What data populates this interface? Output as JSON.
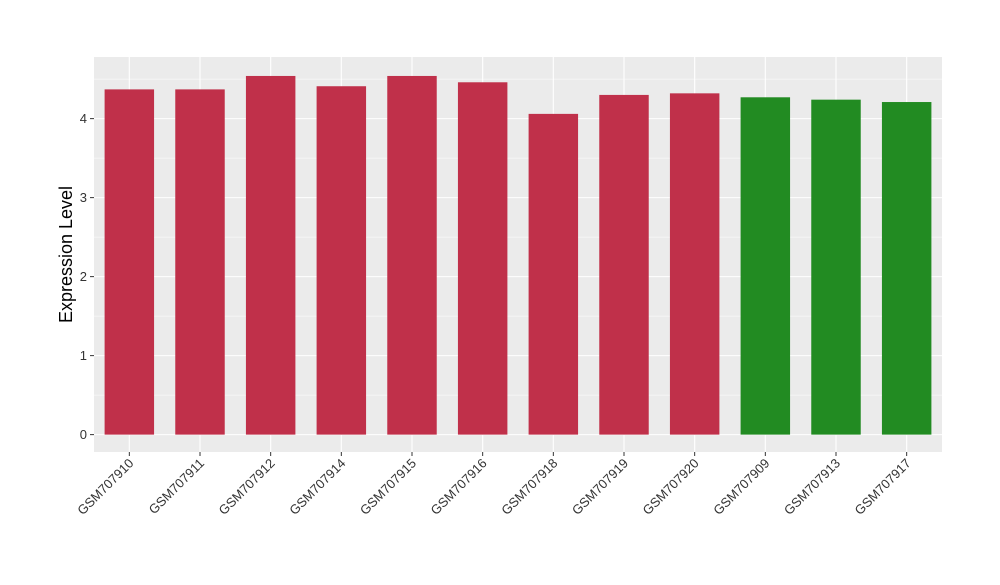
{
  "chart_data": {
    "type": "bar",
    "title": "",
    "xlabel": "",
    "ylabel": "Expression Level",
    "ylim": [
      -0.22,
      4.78
    ],
    "y_ticks": [
      0,
      1,
      2,
      3,
      4
    ],
    "grid": true,
    "legend": "none",
    "categories": [
      "GSM707910",
      "GSM707911",
      "GSM707912",
      "GSM707914",
      "GSM707915",
      "GSM707916",
      "GSM707918",
      "GSM707919",
      "GSM707920",
      "GSM707909",
      "GSM707913",
      "GSM707917"
    ],
    "values": [
      4.37,
      4.37,
      4.54,
      4.41,
      4.54,
      4.46,
      4.06,
      4.3,
      4.32,
      4.27,
      4.24,
      4.21
    ],
    "groups": [
      "group1",
      "group1",
      "group1",
      "group1",
      "group1",
      "group1",
      "group1",
      "group1",
      "group1",
      "group2",
      "group2",
      "group2"
    ],
    "colors": {
      "group1": "#c0304a",
      "group2": "#228b22"
    },
    "panel_background": "#ebebeb",
    "grid_color": "#ffffff"
  }
}
